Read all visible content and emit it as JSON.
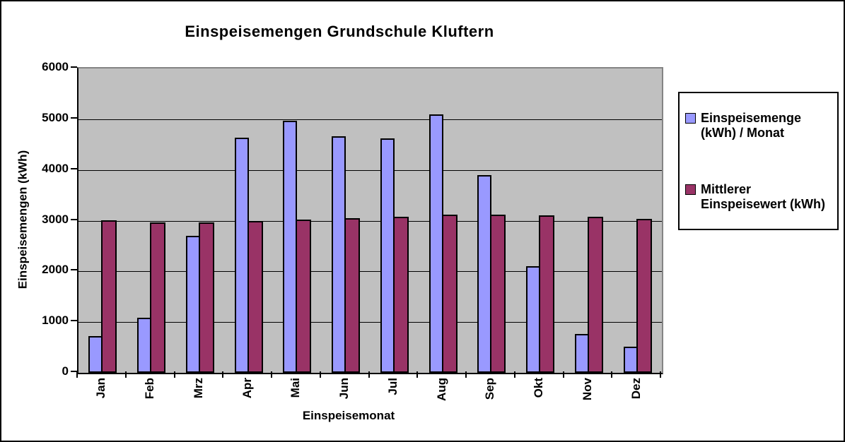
{
  "frame": {
    "background": "#FFFFFF",
    "border_color": "#000000"
  },
  "chart_data": {
    "type": "bar",
    "title": "Einspeisemengen Grundschule Kluftern",
    "xlabel": "Einspeisemonat",
    "ylabel": "Einspeisemengen (kWh)",
    "categories": [
      "Jan",
      "Feb",
      "Mrz",
      "Apr",
      "Mai",
      "Jun",
      "Jul",
      "Aug",
      "Sep",
      "Okt",
      "Nov",
      "Dez"
    ],
    "series": [
      {
        "name": "Einspeisemenge (kWh) / Monat",
        "color": "#9999FF",
        "values": [
          720,
          1080,
          2700,
          4640,
          4970,
          4660,
          4620,
          5100,
          3900,
          2100,
          770,
          510
        ]
      },
      {
        "name": "Mittlerer Einspeisewert (kWh)",
        "color": "#993366",
        "values": [
          3010,
          2970,
          2970,
          2990,
          3020,
          3050,
          3080,
          3120,
          3120,
          3100,
          3070,
          3030
        ]
      }
    ],
    "ylim": [
      0,
      6000
    ],
    "yticks": [
      0,
      1000,
      2000,
      3000,
      4000,
      5000,
      6000
    ],
    "grid": true,
    "gridline_color": "#000000",
    "plot_background": "#C0C0C0",
    "plot_border_color": "#848484",
    "legend_position": "right"
  }
}
